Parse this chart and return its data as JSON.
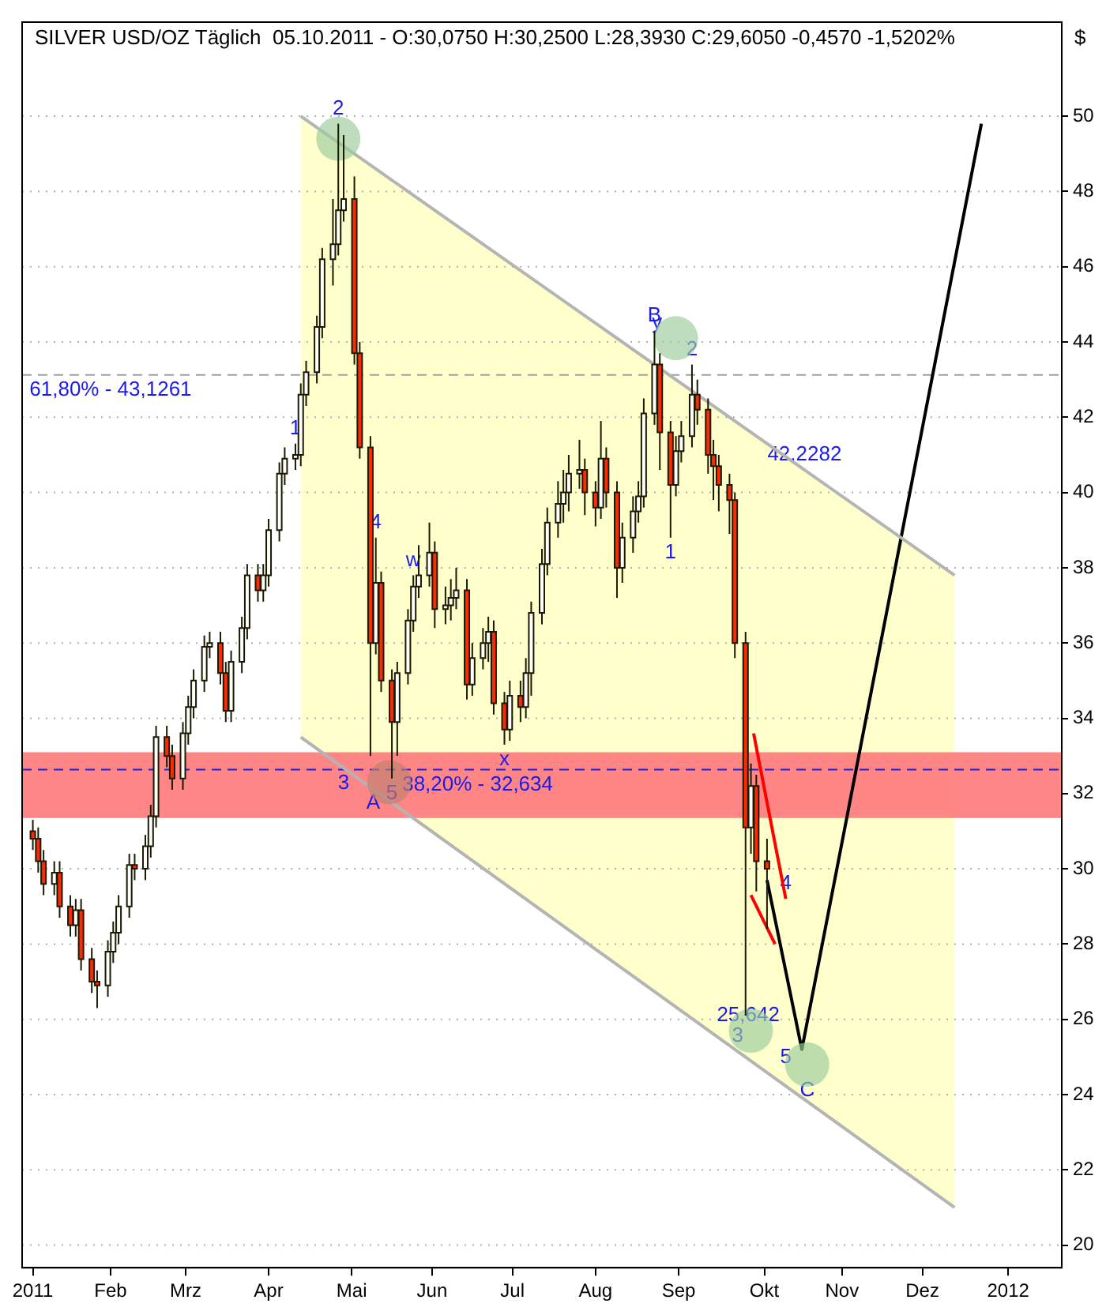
{
  "chart_data": {
    "type": "candlestick",
    "title": "SILVER USD/OZ Täglich  05.10.2011 - O:30,0750 H:30,2500 L:28,3930 C:29,6050 -0,4570 -1,5202%",
    "ylabel": "$",
    "x": [
      "2011-01-03",
      "2011-01-05",
      "2011-01-07",
      "2011-01-11",
      "2011-01-13",
      "2011-01-17",
      "2011-01-19",
      "2011-01-21",
      "2011-01-25",
      "2011-01-27",
      "2011-01-31",
      "2011-02-02",
      "2011-02-04",
      "2011-02-08",
      "2011-02-10",
      "2011-02-14",
      "2011-02-16",
      "2011-02-18",
      "2011-02-22",
      "2011-02-24",
      "2011-02-28",
      "2011-03-02",
      "2011-03-04",
      "2011-03-08",
      "2011-03-10",
      "2011-03-14",
      "2011-03-16",
      "2011-03-18",
      "2011-03-22",
      "2011-03-24",
      "2011-03-28",
      "2011-03-30",
      "2011-04-01",
      "2011-04-05",
      "2011-04-07",
      "2011-04-11",
      "2011-04-13",
      "2011-04-15",
      "2011-04-19",
      "2011-04-21",
      "2011-04-25",
      "2011-04-27",
      "2011-04-29",
      "2011-05-03",
      "2011-05-05",
      "2011-05-09",
      "2011-05-11",
      "2011-05-13",
      "2011-05-17",
      "2011-05-19",
      "2011-05-23",
      "2011-05-25",
      "2011-05-27",
      "2011-05-31",
      "2011-06-02",
      "2011-06-06",
      "2011-06-08",
      "2011-06-10",
      "2011-06-14",
      "2011-06-16",
      "2011-06-20",
      "2011-06-22",
      "2011-06-24",
      "2011-06-28",
      "2011-06-30",
      "2011-07-04",
      "2011-07-06",
      "2011-07-08",
      "2011-07-12",
      "2011-07-14",
      "2011-07-18",
      "2011-07-20",
      "2011-07-22",
      "2011-07-26",
      "2011-07-28",
      "2011-08-01",
      "2011-08-03",
      "2011-08-05",
      "2011-08-09",
      "2011-08-11",
      "2011-08-15",
      "2011-08-17",
      "2011-08-19",
      "2011-08-23",
      "2011-08-25",
      "2011-08-29",
      "2011-08-31",
      "2011-09-02",
      "2011-09-06",
      "2011-09-08",
      "2011-09-12",
      "2011-09-14",
      "2011-09-16",
      "2011-09-20",
      "2011-09-22",
      "2011-09-26",
      "2011-09-28",
      "2011-09-30",
      "2011-10-04"
    ],
    "ohlc": [
      [
        31.0,
        31.3,
        30.5,
        30.8
      ],
      [
        30.8,
        31.1,
        29.9,
        30.2
      ],
      [
        30.2,
        30.5,
        29.3,
        29.6
      ],
      [
        29.6,
        30.2,
        29.3,
        29.9
      ],
      [
        29.9,
        30.2,
        28.7,
        29.0
      ],
      [
        29.0,
        29.3,
        28.2,
        28.5
      ],
      [
        28.5,
        29.2,
        28.2,
        28.9
      ],
      [
        28.9,
        29.2,
        27.3,
        27.6
      ],
      [
        27.6,
        27.9,
        26.7,
        27.0
      ],
      [
        27.0,
        27.3,
        26.3,
        26.9
      ],
      [
        26.9,
        28.1,
        26.6,
        27.8
      ],
      [
        27.8,
        28.6,
        27.5,
        28.3
      ],
      [
        28.3,
        29.3,
        28.0,
        29.0
      ],
      [
        29.0,
        30.4,
        28.7,
        30.1
      ],
      [
        30.1,
        30.4,
        29.7,
        30.0
      ],
      [
        30.0,
        30.9,
        29.7,
        30.6
      ],
      [
        30.6,
        31.7,
        30.3,
        31.4
      ],
      [
        31.4,
        33.8,
        31.1,
        33.5
      ],
      [
        33.5,
        33.8,
        32.7,
        33.0
      ],
      [
        33.0,
        33.3,
        32.1,
        32.4
      ],
      [
        32.4,
        33.9,
        32.1,
        33.6
      ],
      [
        33.6,
        34.6,
        33.3,
        34.3
      ],
      [
        34.3,
        35.3,
        34.0,
        35.0
      ],
      [
        35.0,
        36.2,
        34.7,
        35.9
      ],
      [
        35.9,
        36.3,
        35.6,
        36.0
      ],
      [
        36.0,
        36.3,
        34.9,
        35.2
      ],
      [
        35.2,
        35.5,
        33.9,
        34.2
      ],
      [
        34.2,
        35.8,
        33.9,
        35.5
      ],
      [
        35.5,
        36.7,
        35.2,
        36.4
      ],
      [
        36.4,
        38.1,
        36.1,
        37.8
      ],
      [
        37.8,
        38.1,
        37.1,
        37.4
      ],
      [
        37.4,
        38.1,
        37.1,
        37.8
      ],
      [
        37.8,
        39.3,
        37.5,
        39.0
      ],
      [
        39.0,
        40.8,
        38.7,
        40.5
      ],
      [
        40.5,
        41.2,
        40.2,
        40.9
      ],
      [
        40.9,
        41.3,
        40.6,
        41.0
      ],
      [
        41.0,
        42.9,
        40.7,
        42.6
      ],
      [
        42.6,
        43.5,
        42.3,
        43.2
      ],
      [
        43.2,
        44.7,
        42.9,
        44.4
      ],
      [
        44.4,
        46.5,
        44.1,
        46.2
      ],
      [
        46.2,
        47.8,
        45.5,
        46.6
      ],
      [
        46.6,
        49.8,
        46.3,
        47.5
      ],
      [
        47.5,
        49.5,
        47.2,
        47.8
      ],
      [
        47.8,
        48.4,
        43.4,
        43.7
      ],
      [
        43.7,
        44.0,
        40.9,
        41.2
      ],
      [
        41.2,
        41.5,
        33.0,
        36.0
      ],
      [
        36.0,
        38.8,
        35.7,
        37.6
      ],
      [
        37.6,
        37.9,
        34.7,
        35.0
      ],
      [
        35.0,
        35.3,
        32.4,
        33.9
      ],
      [
        33.9,
        35.5,
        33.0,
        35.2
      ],
      [
        35.2,
        36.9,
        34.9,
        36.6
      ],
      [
        36.6,
        37.8,
        36.3,
        37.5
      ],
      [
        37.5,
        38.6,
        37.2,
        37.8
      ],
      [
        37.8,
        39.2,
        37.5,
        38.4
      ],
      [
        38.4,
        38.7,
        36.4,
        36.9
      ],
      [
        36.9,
        37.5,
        36.5,
        37.0
      ],
      [
        37.0,
        37.7,
        36.6,
        37.2
      ],
      [
        37.2,
        38.0,
        36.9,
        37.4
      ],
      [
        37.4,
        37.7,
        34.5,
        34.9
      ],
      [
        34.9,
        36.0,
        34.6,
        35.6
      ],
      [
        35.6,
        36.4,
        35.3,
        36.0
      ],
      [
        36.0,
        36.7,
        35.5,
        36.3
      ],
      [
        36.3,
        36.6,
        34.1,
        34.4
      ],
      [
        34.4,
        34.7,
        33.3,
        33.7
      ],
      [
        33.7,
        35.0,
        33.4,
        34.6
      ],
      [
        34.6,
        35.0,
        33.9,
        34.3
      ],
      [
        34.3,
        35.6,
        34.0,
        35.2
      ],
      [
        35.2,
        37.1,
        34.6,
        36.8
      ],
      [
        36.8,
        38.5,
        36.5,
        38.1
      ],
      [
        38.1,
        39.6,
        37.8,
        39.2
      ],
      [
        39.2,
        40.3,
        38.8,
        39.7
      ],
      [
        39.7,
        40.6,
        39.2,
        40.0
      ],
      [
        40.0,
        41.0,
        39.5,
        40.5
      ],
      [
        40.5,
        41.4,
        40.1,
        40.6
      ],
      [
        40.6,
        40.9,
        39.4,
        40.0
      ],
      [
        40.0,
        40.3,
        39.1,
        39.6
      ],
      [
        39.6,
        41.9,
        39.3,
        40.9
      ],
      [
        40.9,
        41.2,
        39.6,
        40.0
      ],
      [
        40.0,
        40.3,
        37.2,
        38.0
      ],
      [
        38.0,
        39.2,
        37.6,
        38.8
      ],
      [
        38.8,
        39.9,
        38.4,
        39.5
      ],
      [
        39.5,
        40.3,
        39.2,
        39.9
      ],
      [
        39.9,
        42.5,
        39.6,
        42.1
      ],
      [
        42.1,
        44.3,
        41.8,
        43.4
      ],
      [
        43.4,
        43.7,
        40.6,
        41.6
      ],
      [
        41.6,
        41.9,
        38.8,
        40.2
      ],
      [
        40.2,
        41.5,
        39.9,
        41.1
      ],
      [
        41.1,
        41.9,
        40.8,
        41.5
      ],
      [
        41.5,
        43.4,
        41.2,
        42.6
      ],
      [
        42.6,
        43.0,
        41.8,
        42.2
      ],
      [
        42.2,
        42.5,
        40.5,
        41.0
      ],
      [
        41.0,
        41.4,
        39.8,
        40.7
      ],
      [
        40.7,
        41.0,
        39.5,
        40.2
      ],
      [
        40.2,
        40.5,
        38.9,
        39.8
      ],
      [
        39.8,
        40.0,
        35.6,
        36.0
      ],
      [
        36.0,
        36.3,
        26.1,
        31.1
      ],
      [
        31.1,
        32.8,
        30.4,
        32.2
      ],
      [
        32.2,
        32.5,
        29.4,
        30.2
      ],
      [
        30.2,
        30.8,
        28.4,
        30.0
      ]
    ],
    "series": [
      {
        "type": "line",
        "color": "#b4b4b4",
        "x": [
          "2011-04-13",
          "2011-12-13"
        ],
        "values": [
          50.0,
          37.8
        ],
        "upper": [
          50.0,
          37.8
        ],
        "lower": [
          33.5,
          21.0
        ]
      },
      {
        "type": "line",
        "color": "#b4b4b4",
        "x": [
          "2011-04-13",
          "2011-12-13"
        ],
        "values": [
          33.5,
          21.0
        ]
      },
      {
        "type": "line",
        "color": "#ff0000",
        "x": [
          "2011-09-29",
          "2011-10-11"
        ],
        "values": [
          33.6,
          29.2
        ]
      },
      {
        "type": "line",
        "color": "#ff0000",
        "x": [
          "2011-09-28",
          "2011-10-07"
        ],
        "values": [
          29.3,
          28.0
        ]
      },
      {
        "type": "line",
        "color": "#000000",
        "x": [
          "2011-10-04",
          "2011-10-17",
          "2011-12-23"
        ],
        "values": [
          29.7,
          25.2,
          49.8
        ]
      },
      {
        "type": "scatter",
        "marker": "circle",
        "x": [
          "2011-04-27",
          "2011-05-16",
          "2011-08-31",
          "2011-09-28",
          "2011-10-19"
        ],
        "values": [
          49.4,
          32.3,
          44.1,
          25.7,
          24.8
        ],
        "colors": [
          "#9ccc9c",
          "#c08070",
          "#9ccc9c",
          "#9ccc9c",
          "#9ccc9c"
        ]
      }
    ],
    "bands": [
      {
        "axis": "y",
        "from": 31.35,
        "to": 33.1,
        "color": "#ff8080"
      }
    ],
    "ref_lines": [
      {
        "axis": "y",
        "value": 43.1261,
        "color": "#a0a0a0",
        "line_style": "dashed"
      },
      {
        "axis": "y",
        "value": 32.634,
        "color": "#2020d0",
        "line_style": "dashed"
      }
    ],
    "annotations": [
      {
        "text": "1",
        "x": "2011-04-11",
        "y": 41.3
      },
      {
        "text": "2",
        "x": "2011-04-27",
        "y": 49.8
      },
      {
        "text": "3",
        "x": "2011-04-29",
        "y": 32.68
      },
      {
        "text": "4",
        "x": "2011-05-11",
        "y": 38.8
      },
      {
        "text": "5",
        "x": "2011-05-17",
        "y": 32.4
      },
      {
        "text": "A",
        "x": "2011-05-10",
        "y": 31.35
      },
      {
        "text": "w",
        "x": "2011-05-25",
        "y": 37.8
      },
      {
        "text": "x",
        "x": "2011-06-28",
        "y": 33.3
      },
      {
        "text": "y",
        "x": "2011-08-24",
        "y": 44.1
      },
      {
        "text": "B",
        "x": "2011-08-23",
        "y": 44.3
      },
      {
        "text": "2",
        "x": "2011-09-06",
        "y": 43.4
      },
      {
        "text": "1",
        "x": "2011-08-29",
        "y": 38.8
      },
      {
        "text": "4",
        "x": "2011-10-11",
        "y": 29.2
      },
      {
        "text": "3",
        "x": "2011-09-23",
        "y": 25.15
      },
      {
        "text": "5",
        "x": "2011-10-11",
        "y": 24.6
      },
      {
        "text": "C",
        "x": "2011-10-19",
        "y": 23.7
      },
      {
        "text": "25,642",
        "x": "2011-09-27",
        "y": 25.7
      },
      {
        "text": "42,2282",
        "x": "2011-10-18",
        "y": 40.6
      },
      {
        "text": "61,80% - 43,1261",
        "x": "2011-02-01",
        "y": 43.1261
      },
      {
        "text": "38,20% - 32,634",
        "x": "2011-06-18",
        "y": 32.634
      }
    ],
    "xlim": [
      "2010-12-30",
      "2012-01-22"
    ],
    "xticks": [
      {
        "value": "2011-01-03",
        "label": "2011"
      },
      {
        "value": "2011-02-01",
        "label": "Feb"
      },
      {
        "value": "2011-03-01",
        "label": "Mrz"
      },
      {
        "value": "2011-04-01",
        "label": "Apr"
      },
      {
        "value": "2011-05-02",
        "label": "Mai"
      },
      {
        "value": "2011-06-01",
        "label": "Jun"
      },
      {
        "value": "2011-07-01",
        "label": "Jul"
      },
      {
        "value": "2011-08-01",
        "label": "Aug"
      },
      {
        "value": "2011-09-01",
        "label": "Sep"
      },
      {
        "value": "2011-10-03",
        "label": "Okt"
      },
      {
        "value": "2011-11-01",
        "label": "Nov"
      },
      {
        "value": "2011-12-01",
        "label": "Dez"
      },
      {
        "value": "2012-01-02",
        "label": "2012"
      }
    ],
    "ylim": [
      19.4,
      52.5
    ],
    "yticks": [
      20,
      22,
      24,
      26,
      28,
      30,
      32,
      34,
      36,
      38,
      40,
      42,
      44,
      46,
      48,
      50
    ],
    "grid": "y",
    "legend": false
  }
}
